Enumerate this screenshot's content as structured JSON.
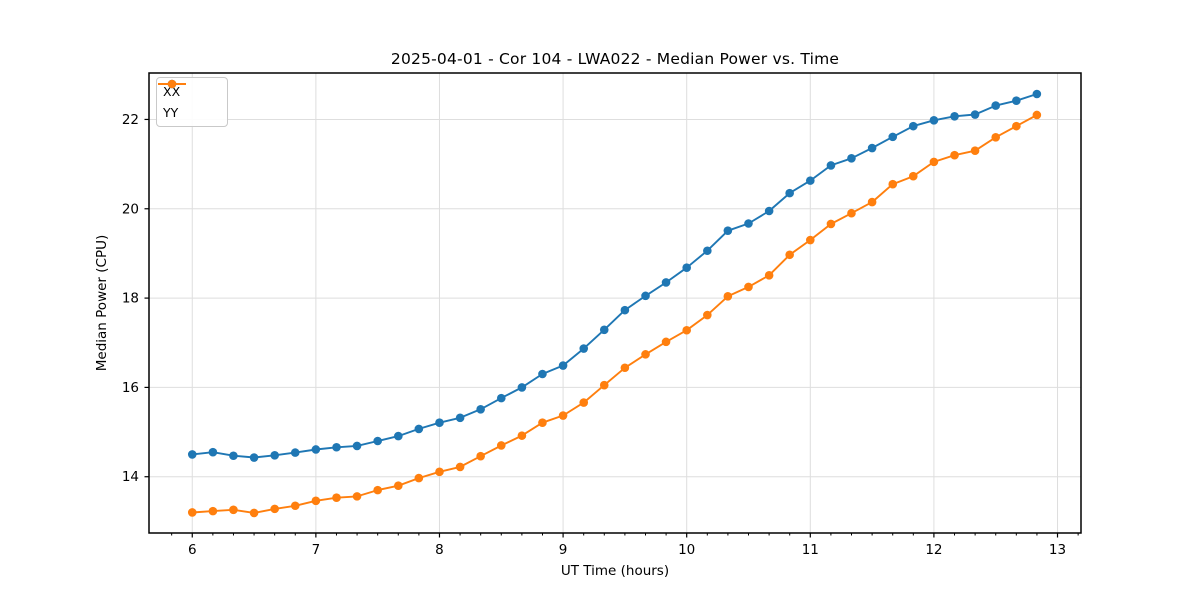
{
  "chart_data": {
    "type": "line",
    "title": "2025-04-01 - Cor 104 - LWA022 - Median Power vs. Time",
    "xlabel": "UT Time (hours)",
    "ylabel": "Median Power (CPU)",
    "xlim": [
      5.65,
      13.19
    ],
    "ylim": [
      12.74,
      23.04
    ],
    "x_major_ticks": [
      6,
      7,
      8,
      9,
      10,
      11,
      12,
      13
    ],
    "y_major_ticks": [
      14,
      16,
      18,
      20,
      22
    ],
    "x_minor_tick_start": 5.8333,
    "x_minor_tick_step": 0.16667,
    "grid": true,
    "grid_color": "#dedede",
    "frame_color": "#000000",
    "legend_position": "upper-left",
    "marker": "circle",
    "x": [
      6.0,
      6.167,
      6.333,
      6.5,
      6.667,
      6.833,
      7.0,
      7.167,
      7.333,
      7.5,
      7.667,
      7.833,
      8.0,
      8.167,
      8.333,
      8.5,
      8.667,
      8.833,
      9.0,
      9.167,
      9.333,
      9.5,
      9.667,
      9.833,
      10.0,
      10.167,
      10.333,
      10.5,
      10.667,
      10.833,
      11.0,
      11.167,
      11.333,
      11.5,
      11.667,
      11.833,
      12.0,
      12.167,
      12.333,
      12.5,
      12.667,
      12.833
    ],
    "series": [
      {
        "name": "XX",
        "color": "#1f77b4",
        "values": [
          14.5,
          14.55,
          14.47,
          14.43,
          14.48,
          14.54,
          14.61,
          14.66,
          14.69,
          14.8,
          14.91,
          15.07,
          15.21,
          15.32,
          15.51,
          15.76,
          16.0,
          16.3,
          16.49,
          16.87,
          17.29,
          17.73,
          18.05,
          18.35,
          18.68,
          19.06,
          19.51,
          19.67,
          19.95,
          20.35,
          20.63,
          20.97,
          21.13,
          21.36,
          21.61,
          21.85,
          21.98,
          22.07,
          22.11,
          22.31,
          22.42,
          22.57
        ]
      },
      {
        "name": "YY",
        "color": "#ff7f0e",
        "values": [
          13.2,
          13.23,
          13.26,
          13.19,
          13.28,
          13.35,
          13.46,
          13.53,
          13.56,
          13.7,
          13.8,
          13.97,
          14.11,
          14.22,
          14.46,
          14.7,
          14.92,
          15.21,
          15.37,
          15.66,
          16.05,
          16.44,
          16.74,
          17.02,
          17.28,
          17.62,
          18.04,
          18.25,
          18.51,
          18.97,
          19.3,
          19.66,
          19.9,
          20.15,
          20.55,
          20.73,
          21.05,
          21.2,
          21.3,
          21.6,
          21.85,
          22.1
        ]
      }
    ]
  }
}
